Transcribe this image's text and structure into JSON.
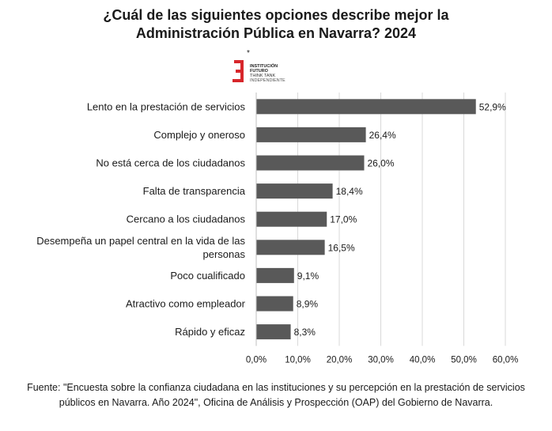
{
  "title_line1": "¿Cuál de las siguientes opciones describe mejor la",
  "title_line2": "Administración Pública en Navarra? 2024",
  "logo": {
    "text_line1": "INSTITUCIÓN",
    "text_line2": "FUTURO",
    "text_line3": "THINK TANK",
    "text_line4": "INDEPENDIENTE",
    "mark_color": "#d7262b"
  },
  "source_text": "Fuente: \"Encuesta sobre la confianza ciudadana en las instituciones y su percepción en la prestación de servicios públicos en Navarra. Año 2024\", Oficina de Análisis y Prospección (OAP) del Gobierno de Navarra.",
  "chart_data": {
    "type": "bar",
    "orientation": "horizontal",
    "title": "¿Cuál de las siguientes opciones describe mejor la Administración Pública en Navarra? 2024",
    "categories": [
      "Lento en la prestación de servicios",
      "Complejo y oneroso",
      "No está cerca de los ciudadanos",
      "Falta de transparencia",
      "Cercano a los ciudadanos",
      "Desempeña un papel central en la vida de las personas",
      "Poco cualificado",
      "Atractivo como empleador",
      "Rápido y eficaz"
    ],
    "category_lines": [
      [
        "Lento en la prestación de servicios"
      ],
      [
        "Complejo y oneroso"
      ],
      [
        "No está cerca de los ciudadanos"
      ],
      [
        "Falta de transparencia"
      ],
      [
        "Cercano a los ciudadanos"
      ],
      [
        "Desempeña un papel central en la vida de las",
        "personas"
      ],
      [
        "Poco cualificado"
      ],
      [
        "Atractivo como empleador"
      ],
      [
        "Rápido y eficaz"
      ]
    ],
    "values": [
      52.9,
      26.4,
      26.0,
      18.4,
      17.0,
      16.5,
      9.1,
      8.9,
      8.3
    ],
    "value_labels": [
      "52,9%",
      "26,4%",
      "26,0%",
      "18,4%",
      "17,0%",
      "16,5%",
      "9,1%",
      "8,9%",
      "8,3%"
    ],
    "xlim": [
      0,
      60
    ],
    "xticks": [
      0,
      10,
      20,
      30,
      40,
      50,
      60
    ],
    "xtick_labels": [
      "0,0%",
      "10,0%",
      "20,0%",
      "30,0%",
      "40,0%",
      "50,0%",
      "60,0%"
    ],
    "grid": true,
    "bar_color": "#595959",
    "grid_color": "#d9d9d9"
  }
}
